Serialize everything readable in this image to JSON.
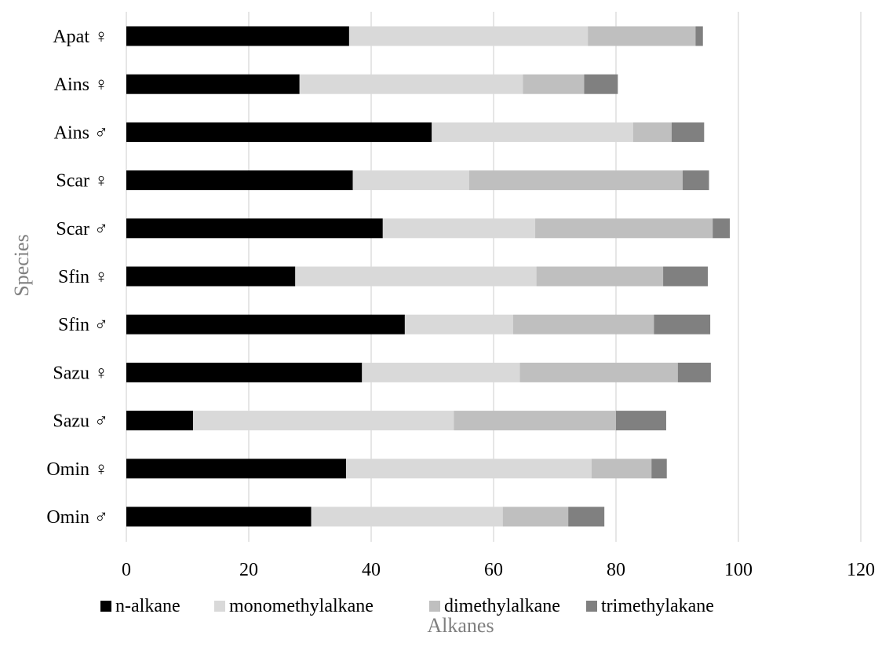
{
  "chart_data": {
    "type": "bar",
    "orientation": "horizontal",
    "stacked": true,
    "categories": [
      "Apat ♀",
      "Ains ♀",
      "Ains ♂",
      "Scar ♀",
      "Scar ♂",
      "Sfin ♀",
      "Sfin ♂",
      "Sazu ♀",
      "Sazu ♂",
      "Omin ♀",
      "Omin ♂"
    ],
    "series": [
      {
        "name": "n-alkane",
        "color": "#000000",
        "values": [
          36.4,
          28.3,
          49.9,
          37.0,
          41.9,
          27.6,
          45.5,
          38.5,
          10.9,
          35.9,
          30.2
        ]
      },
      {
        "name": "monomethylalkane",
        "color": "#d9d9d9",
        "values": [
          39.0,
          36.5,
          32.9,
          19.0,
          24.9,
          39.4,
          17.7,
          25.8,
          42.6,
          40.1,
          31.3
        ]
      },
      {
        "name": "dimethylalkane",
        "color": "#bfbfbf",
        "values": [
          17.6,
          10.0,
          6.3,
          34.9,
          29.0,
          20.7,
          23.0,
          25.8,
          26.5,
          9.8,
          10.7
        ]
      },
      {
        "name": "trimethylakane",
        "color": "#808080",
        "values": [
          1.2,
          5.5,
          5.3,
          4.3,
          2.8,
          7.3,
          9.2,
          5.4,
          8.2,
          2.5,
          5.9
        ]
      }
    ],
    "xlim": [
      0,
      120
    ],
    "xticks": [
      "0",
      "20",
      "40",
      "60",
      "80",
      "100",
      "120"
    ],
    "xlabel": "Alkanes",
    "ylabel": "Species",
    "grid": "vertical",
    "legend_position": "bottom"
  }
}
